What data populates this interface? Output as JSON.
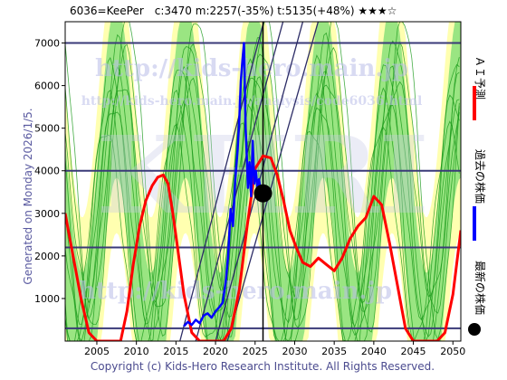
{
  "header": {
    "title": "6036=KeePer　c:3470  m:2257(-35%)  t:5135(+48%)  ★★★☆"
  },
  "left_label": "Generated on Monday 2026/1/5.",
  "copyright": "Copyright (c) Kids-Hero Research Institute. All Rights Reserved.",
  "watermarks": {
    "url_main": "http://kids-hero.main.jp",
    "url_sub": "http://kids-hero.main.jp/analysis/code6036.html",
    "big": "KHRI"
  },
  "legend": [
    {
      "label": "ＡＩ予測",
      "color": "#ff0000"
    },
    {
      "label": "過去の株価",
      "color": "#0000ff"
    },
    {
      "label": "最新の株価",
      "color": "#000000"
    }
  ],
  "colors": {
    "band_outer": "#ffffb0",
    "band_inner": "#88e07a",
    "thin_lines": "#1a9a1a",
    "level_lines": "#3a3a78",
    "trend_lines": "#2c2c66",
    "crosshair": "#000000"
  },
  "chart_data": {
    "type": "line",
    "xlim": [
      2001,
      2051
    ],
    "ylim": [
      0,
      7500
    ],
    "x_ticks": [
      2005,
      2010,
      2015,
      2020,
      2025,
      2030,
      2035,
      2040,
      2045,
      2050
    ],
    "y_ticks": [
      1000,
      2000,
      3000,
      4000,
      5000,
      6000,
      7000
    ],
    "horizontal_levels": [
      7000,
      4000,
      2200,
      300
    ],
    "latest": {
      "x": 2026.0,
      "y": 3470
    },
    "series": [
      {
        "name": "ＡＩ予測",
        "color": "#ff0000",
        "x": [
          2001.0,
          2002.0,
          2003.0,
          2004.0,
          2005.0,
          2006.0,
          2007.0,
          2008.0,
          2008.8,
          2009.6,
          2010.4,
          2011.2,
          2012.0,
          2012.7,
          2013.4,
          2014.0,
          2014.6,
          2015.2,
          2016.0,
          2017.0,
          2018.0,
          2019.0,
          2020.0,
          2021.0,
          2022.0,
          2023.0,
          2024.0,
          2025.0,
          2026.0,
          2027.0,
          2027.8,
          2028.6,
          2029.4,
          2030.2,
          2031.0,
          2032.0,
          2033.0,
          2034.0,
          2035.0,
          2036.0,
          2037.0,
          2038.0,
          2039.0,
          2040.0,
          2041.0,
          2042.0,
          2043.0,
          2044.0,
          2045.0,
          2046.0,
          2047.0,
          2048.0,
          2049.0,
          2050.0,
          2051.0
        ],
        "y": [
          3000,
          2000,
          1000,
          200,
          0,
          0,
          0,
          0,
          700,
          1800,
          2700,
          3300,
          3650,
          3850,
          3900,
          3700,
          3000,
          2200,
          1100,
          200,
          0,
          0,
          0,
          0,
          300,
          1200,
          2700,
          4050,
          4350,
          4300,
          3900,
          3300,
          2600,
          2200,
          1850,
          1750,
          1950,
          1800,
          1650,
          1950,
          2400,
          2700,
          2900,
          3400,
          3200,
          2300,
          1300,
          300,
          0,
          0,
          0,
          0,
          200,
          1100,
          2600
        ]
      },
      {
        "name": "過去の株価",
        "color": "#0000ff",
        "x": [
          2016.0,
          2016.5,
          2017.0,
          2017.5,
          2018.0,
          2018.5,
          2019.0,
          2019.5,
          2020.0,
          2020.5,
          2020.9,
          2021.3,
          2021.6,
          2021.9,
          2022.2,
          2022.5,
          2022.8,
          2023.0,
          2023.2,
          2023.4,
          2023.6,
          2023.8,
          2023.9,
          2024.1,
          2024.3,
          2024.5,
          2024.7,
          2024.9,
          2025.1,
          2025.3,
          2025.5,
          2025.7,
          2025.9,
          2026.0
        ],
        "y": [
          350,
          450,
          380,
          500,
          420,
          600,
          650,
          550,
          700,
          800,
          900,
          1400,
          2000,
          3100,
          2700,
          3800,
          4500,
          5200,
          6100,
          6600,
          7000,
          5000,
          4600,
          3600,
          4200,
          3400,
          4700,
          3700,
          4000,
          3600,
          3800,
          3500,
          3600,
          3470
        ]
      }
    ]
  }
}
